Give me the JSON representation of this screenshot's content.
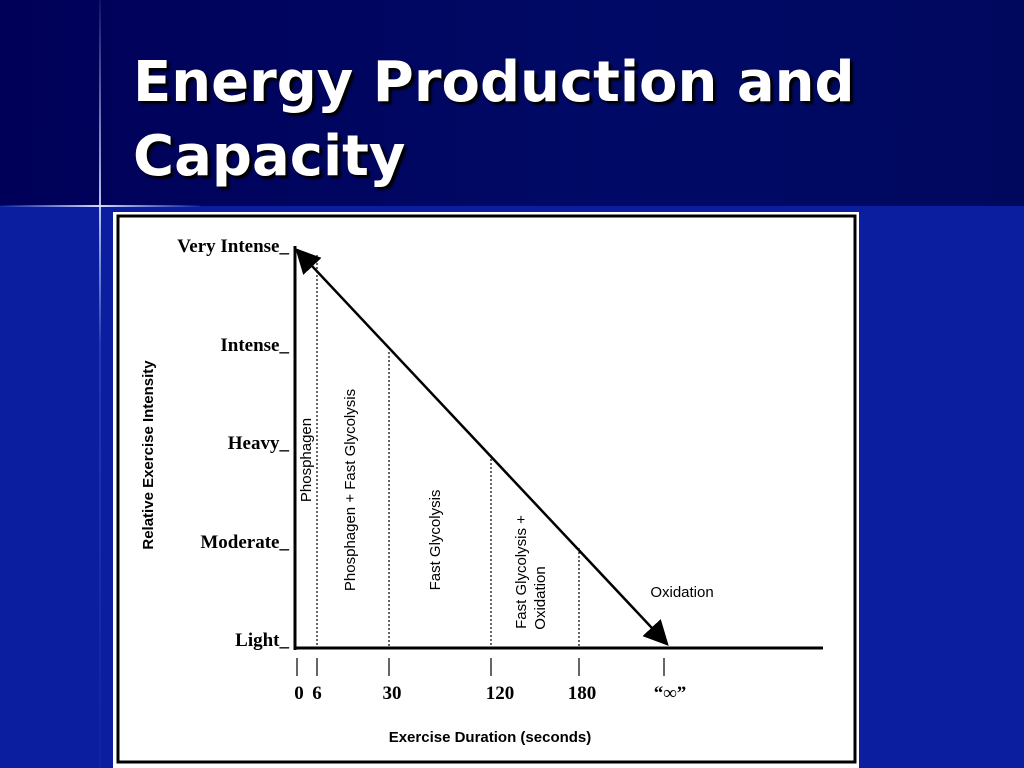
{
  "header": {
    "title_lines": [
      "Energy Production and",
      "Capacity"
    ]
  },
  "diagram": {
    "y_axis_title": "Relative Exercise Intensity",
    "y_labels": [
      "Very Intense_",
      "Intense_",
      "Heavy_",
      "Moderate_",
      "Light_"
    ],
    "x_axis_title": "Exercise Duration (seconds)",
    "x_labels": [
      "0",
      "6",
      "30",
      "120",
      "180",
      "“∞”"
    ],
    "regions": [
      {
        "lines": [
          "Phosphagen"
        ]
      },
      {
        "lines": [
          "Phosphagen + Fast Glycolysis"
        ]
      },
      {
        "lines": [
          "Fast Glycolysis"
        ]
      },
      {
        "lines": [
          "Fast Glycolysis +",
          "Oxidation"
        ]
      },
      {
        "lines": [
          "Oxidation"
        ]
      }
    ]
  }
}
